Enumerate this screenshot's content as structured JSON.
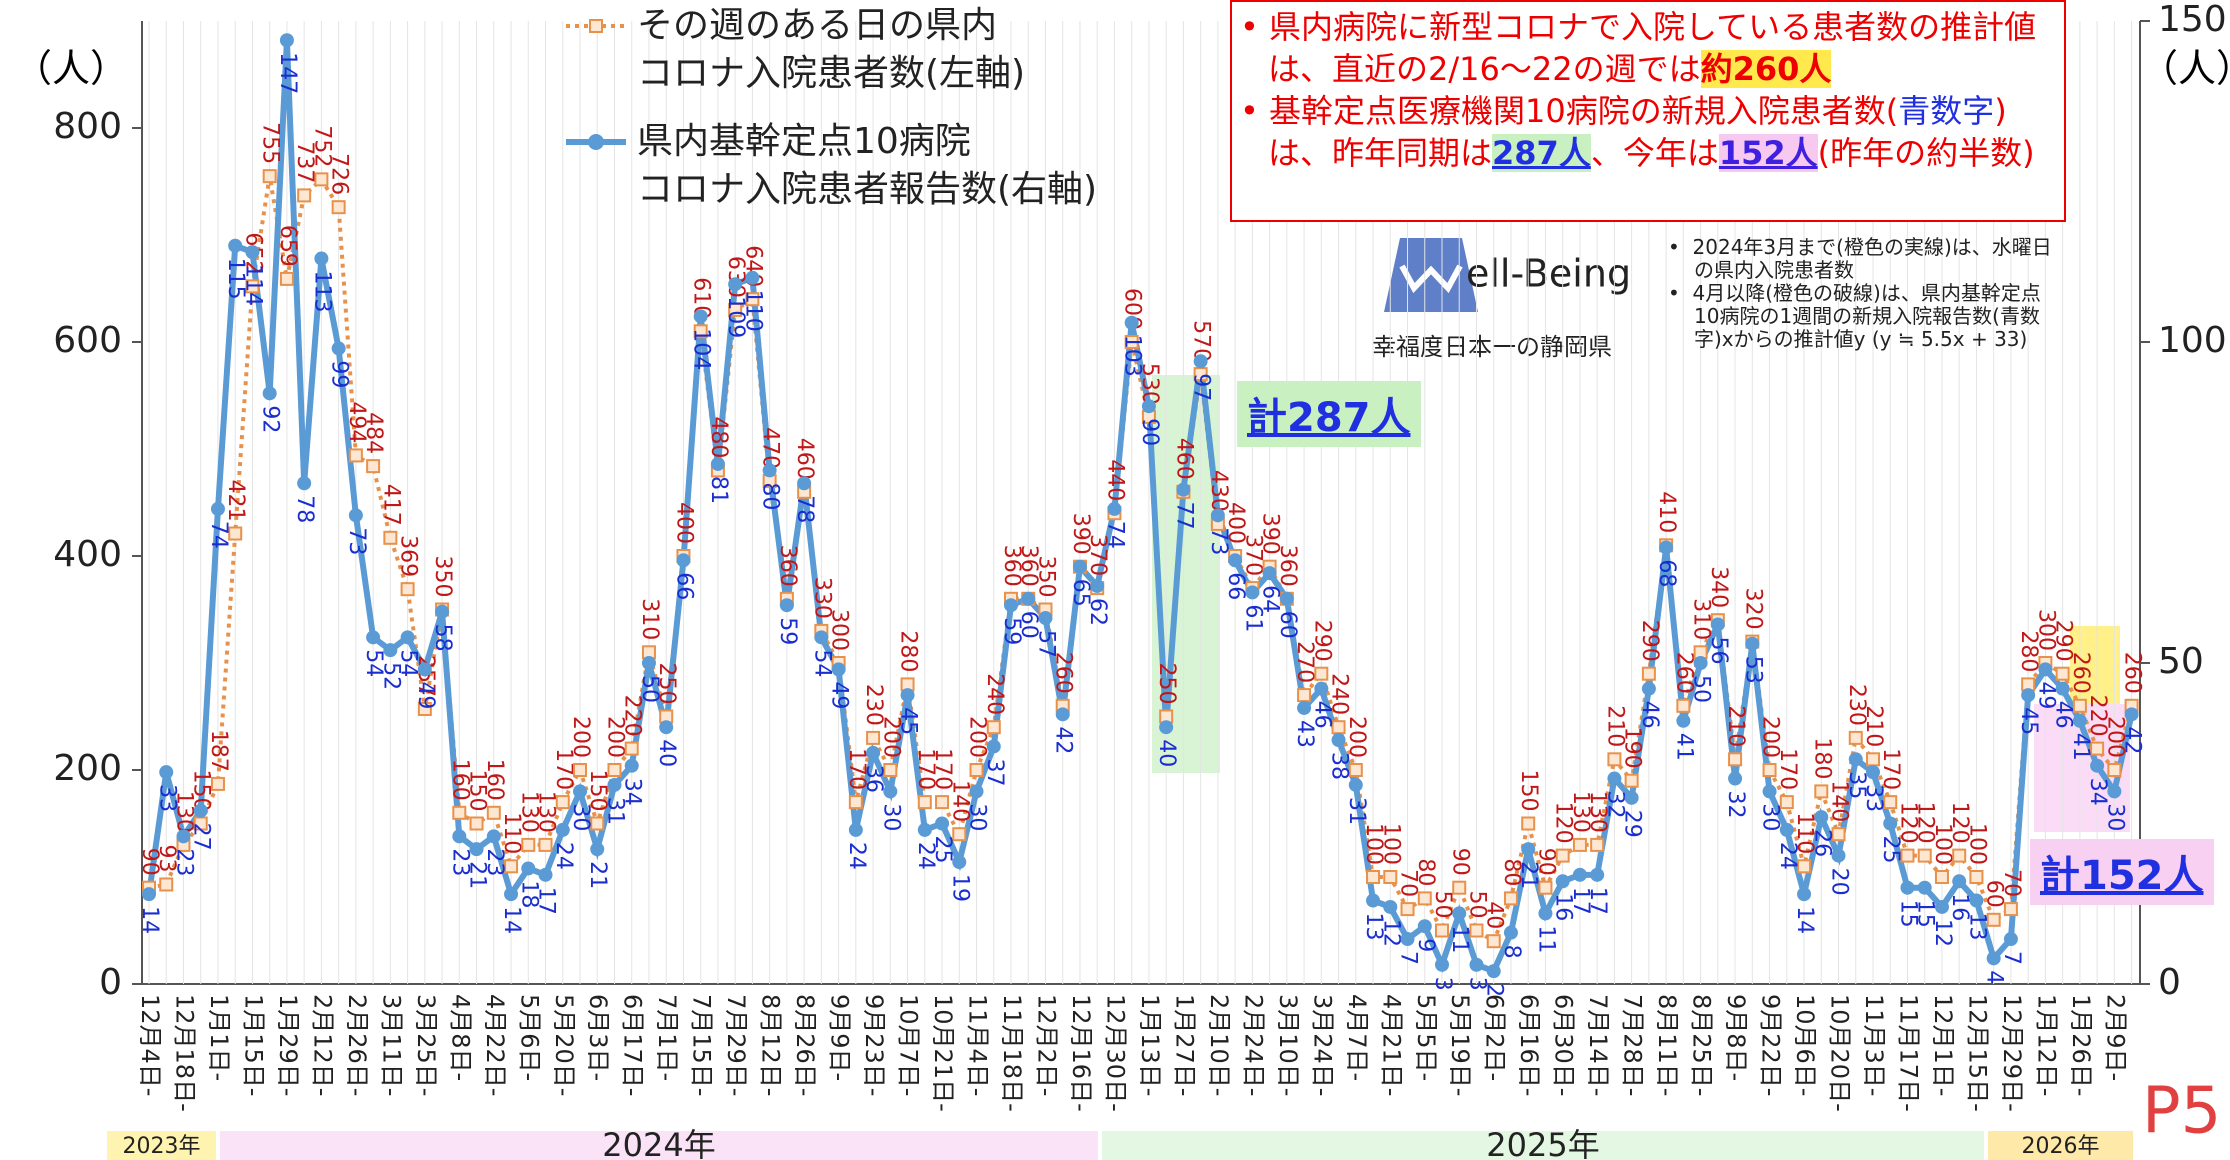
{
  "chart_data": {
    "type": "line",
    "y_unit": "（人）",
    "y2_unit": "（人）",
    "ylim": [
      0,
      900
    ],
    "yticks": [
      0,
      200,
      400,
      600,
      800
    ],
    "y2lim": [
      0,
      150
    ],
    "y2ticks": [
      0,
      50,
      100,
      150
    ],
    "categories": [
      "12月4日-",
      null,
      "12月18日-",
      null,
      "1月1日-",
      null,
      "1月15日-",
      null,
      "1月29日-",
      null,
      "2月12日-",
      null,
      "2月26日-",
      null,
      "3月11日-",
      null,
      "3月25日-",
      null,
      "4月8日-",
      null,
      "4月22日-",
      null,
      "5月6日-",
      null,
      "5月20日-",
      null,
      "6月3日-",
      null,
      "6月17日-",
      null,
      "7月1日-",
      null,
      "7月15日-",
      null,
      "7月29日-",
      null,
      "8月12日-",
      null,
      "8月26日-",
      null,
      "9月9日-",
      null,
      "9月23日-",
      null,
      "10月7日-",
      null,
      "10月21日-",
      null,
      "11月4日-",
      null,
      "11月18日-",
      null,
      "12月2日-",
      null,
      "12月16日-",
      null,
      "12月30日-",
      null,
      "1月13日-",
      null,
      "1月27日-",
      null,
      "2月10日-",
      null,
      "2月24日-",
      null,
      "3月10日-",
      null,
      "3月24日-",
      null,
      "4月7日-",
      null,
      "4月21日-",
      null,
      "5月5日-",
      null,
      "5月19日-",
      null,
      "6月2日-",
      null,
      "6月16日-",
      null,
      "6月30日-",
      null,
      "7月14日-",
      null,
      "7月28日-",
      null,
      "8月11日-",
      null,
      "8月25日-",
      null,
      "9月8日-",
      null,
      "9月22日-",
      null,
      "10月6日-",
      null,
      "10月20日-",
      null,
      "11月3日-",
      null,
      "11月17日-",
      null,
      "12月1日-",
      null,
      "12月15日-",
      null,
      "12月29日-",
      null,
      "1月12日-",
      null,
      "1月26日-",
      null,
      "2月9日-",
      null
    ],
    "series": [
      {
        "name": "その週のある日の県内\nコロナ入院患者数(左軸)",
        "color": "#e8914a",
        "style": "dotted",
        "axis": "y",
        "values": [
          90,
          93,
          130,
          150,
          187,
          421,
          652,
          755,
          659,
          737,
          752,
          726,
          494,
          484,
          417,
          369,
          257,
          350,
          160,
          150,
          160,
          110,
          130,
          130,
          170,
          200,
          150,
          200,
          220,
          310,
          250,
          400,
          610,
          480,
          630,
          640,
          470,
          360,
          460,
          330,
          300,
          170,
          230,
          200,
          280,
          170,
          170,
          140,
          200,
          240,
          360,
          360,
          350,
          260,
          390,
          370,
          440,
          600,
          530,
          250,
          460,
          570,
          430,
          400,
          370,
          390,
          360,
          270,
          290,
          240,
          200,
          100,
          100,
          70,
          80,
          50,
          90,
          50,
          40,
          80,
          150,
          90,
          120,
          130,
          130,
          210,
          190,
          290,
          410,
          260,
          310,
          340,
          210,
          320,
          200,
          170,
          110,
          180,
          140,
          230,
          210,
          170,
          120,
          120,
          100,
          120,
          100,
          60,
          70,
          280,
          300,
          290,
          260,
          220,
          200,
          260
        ]
      },
      {
        "name": "県内基幹定点10病院\nコロナ入院患者報告数(右軸)",
        "color": "#5b9bd5",
        "style": "solid",
        "axis": "y2",
        "values": [
          14,
          33,
          23,
          27,
          74,
          115,
          114,
          92,
          147,
          78,
          113,
          99,
          73,
          54,
          52,
          54,
          49,
          58,
          23,
          21,
          23,
          14,
          18,
          17,
          24,
          30,
          21,
          31,
          34,
          50,
          40,
          66,
          104,
          81,
          109,
          110,
          80,
          59,
          78,
          54,
          49,
          24,
          36,
          30,
          45,
          24,
          25,
          19,
          30,
          37,
          59,
          60,
          57,
          42,
          65,
          62,
          74,
          103,
          90,
          40,
          77,
          97,
          73,
          66,
          61,
          64,
          60,
          43,
          46,
          38,
          31,
          13,
          12,
          7,
          9,
          3,
          11,
          3,
          2,
          8,
          21,
          11,
          16,
          17,
          17,
          32,
          29,
          46,
          68,
          41,
          50,
          56,
          32,
          53,
          30,
          24,
          14,
          26,
          20,
          35,
          33,
          25,
          15,
          15,
          12,
          16,
          13,
          4,
          7,
          45,
          49,
          46,
          41,
          34,
          30,
          42
        ]
      }
    ],
    "years": [
      {
        "label": "2023年",
        "color": "#fff3b0"
      },
      {
        "label": "2024年",
        "color": "#fbe3f7"
      },
      {
        "label": "2025年",
        "color": "#e3f7e3"
      },
      {
        "label": "2026年",
        "color": "#ffe9a8"
      }
    ],
    "total_2025": "計287人",
    "total_2026": "計152人"
  },
  "callout": {
    "item1": [
      "県内病院に新型コロナで入院している患者数の推計値は、直近の2/16～22の週では",
      "約260人"
    ],
    "item2": [
      "基幹定点医療機関10病院の新規入院患者数(",
      "青数字",
      ")は、昨年同期は",
      "287人",
      "、今年は",
      "152人",
      "(昨年の約半数)"
    ]
  },
  "logo": {
    "wordmark": "ell-Being",
    "tagline": "幸福度日本一の静岡県"
  },
  "notes": [
    "2024年3月まで(橙色の実線)は、水曜日の県内入院患者数",
    "4月以降(橙色の破線)は、県内基幹定点10病院の1週間の新規入院報告数(青数字)xからの推計値y (y ≒ 5.5x + 33)"
  ],
  "page": "P5"
}
